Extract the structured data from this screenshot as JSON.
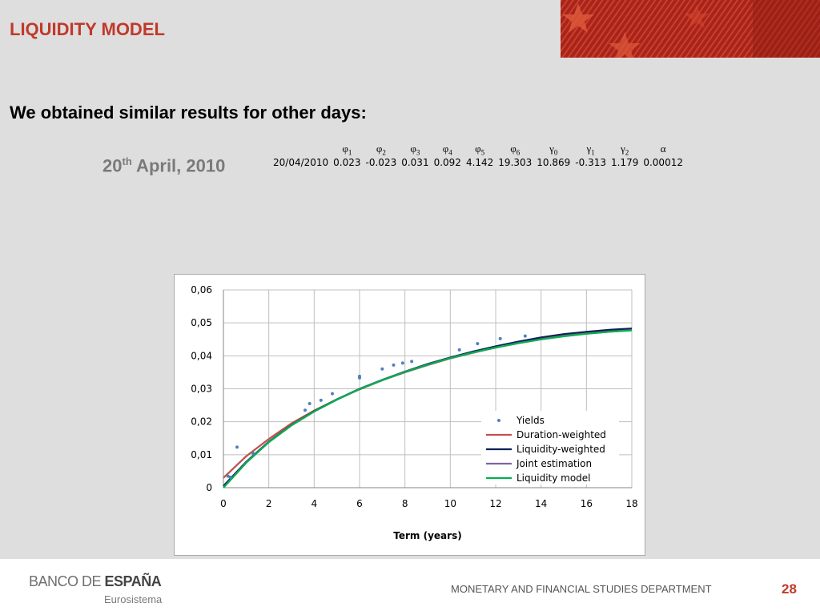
{
  "slide": {
    "title": "LIQUIDITY MODEL",
    "heading": "We obtained similar results for other days:",
    "date_number": "20",
    "date_suffix": "th",
    "date_rest": " April, 2010"
  },
  "params_table": {
    "symbols": [
      {
        "base": "φ",
        "sub": "1"
      },
      {
        "base": "φ",
        "sub": "2"
      },
      {
        "base": "φ",
        "sub": "3"
      },
      {
        "base": "φ",
        "sub": "4"
      },
      {
        "base": "φ",
        "sub": "5"
      },
      {
        "base": "φ",
        "sub": "6"
      },
      {
        "base": "γ",
        "sub": "0"
      },
      {
        "base": "γ",
        "sub": "1"
      },
      {
        "base": "γ",
        "sub": "2"
      },
      {
        "base": "α",
        "sub": ""
      }
    ],
    "row": [
      "20/04/2010",
      "0.023",
      "-0.023",
      "0.031",
      "0.092",
      "4.142",
      "19.303",
      "10.869",
      "-0.313",
      "1.179",
      "0.00012"
    ]
  },
  "chart_data": {
    "type": "scatter",
    "xlabel": "Term (years)",
    "ylabel": "",
    "xlim": [
      0,
      18
    ],
    "ylim": [
      0,
      0.06
    ],
    "x_ticks": [
      "0",
      "2",
      "4",
      "6",
      "8",
      "10",
      "12",
      "14",
      "16",
      "18"
    ],
    "y_ticks": [
      "0",
      "0,01",
      "0,02",
      "0,03",
      "0,04",
      "0,05",
      "0,06"
    ],
    "grid": true,
    "legend_position": "bottom-right",
    "series": [
      {
        "name": "Yields",
        "kind": "points",
        "color": "#4f81bd",
        "x": [
          0.2,
          0.3,
          0.6,
          1.3,
          3.6,
          3.8,
          4.3,
          4.8,
          6.0,
          6.0,
          7.0,
          7.5,
          7.9,
          8.3,
          10.4,
          11.2,
          12.2,
          13.3
        ],
        "y": [
          0.0035,
          0.0032,
          0.0123,
          0.0105,
          0.0235,
          0.0255,
          0.0265,
          0.0285,
          0.0333,
          0.0338,
          0.036,
          0.0372,
          0.0378,
          0.0383,
          0.0418,
          0.0437,
          0.0452,
          0.046
        ]
      },
      {
        "name": "Duration-weighted",
        "kind": "line",
        "color": "#c0504d",
        "x": [
          0,
          1,
          2,
          3,
          4,
          5,
          6,
          7,
          8,
          9,
          10,
          11,
          12,
          13,
          14,
          15,
          16,
          17,
          18
        ],
        "y": [
          0.003,
          0.0095,
          0.0148,
          0.0195,
          0.0234,
          0.0268,
          0.0298,
          0.0326,
          0.035,
          0.0372,
          0.0392,
          0.0409,
          0.0425,
          0.0439,
          0.0451,
          0.0461,
          0.0469,
          0.0475,
          0.048
        ]
      },
      {
        "name": "Liquidity-weighted",
        "kind": "line",
        "color": "#0e2257",
        "x": [
          0,
          1,
          2,
          3,
          4,
          5,
          6,
          7,
          8,
          9,
          10,
          11,
          12,
          13,
          14,
          15,
          16,
          17,
          18
        ],
        "y": [
          0.0005,
          0.0078,
          0.014,
          0.019,
          0.0232,
          0.0268,
          0.03,
          0.0327,
          0.0352,
          0.0375,
          0.0395,
          0.0413,
          0.0429,
          0.0443,
          0.0456,
          0.0466,
          0.0473,
          0.0479,
          0.0483
        ]
      },
      {
        "name": "Joint estimation",
        "kind": "line",
        "color": "#8064a2",
        "x": [
          0,
          1,
          2,
          3,
          4,
          5,
          6,
          7,
          8,
          9,
          10,
          11,
          12,
          13,
          14,
          15,
          16,
          17,
          18
        ],
        "y": [
          0.0,
          0.0076,
          0.0139,
          0.0189,
          0.0231,
          0.0267,
          0.0299,
          0.0326,
          0.0351,
          0.0373,
          0.0393,
          0.041,
          0.0425,
          0.0439,
          0.045,
          0.046,
          0.0467,
          0.0473,
          0.0478
        ]
      },
      {
        "name": "Liquidity model",
        "kind": "line",
        "color": "#00b050",
        "x": [
          0,
          1,
          2,
          3,
          4,
          5,
          6,
          7,
          8,
          9,
          10,
          11,
          12,
          13,
          14,
          15,
          16,
          17,
          18
        ],
        "y": [
          0.0,
          0.0075,
          0.0138,
          0.0189,
          0.0231,
          0.0267,
          0.0299,
          0.0326,
          0.0351,
          0.0373,
          0.0393,
          0.041,
          0.0425,
          0.0438,
          0.045,
          0.0459,
          0.0467,
          0.0473,
          0.0477
        ]
      }
    ]
  },
  "footer": {
    "logo_main_light": "BANCO DE ",
    "logo_main_bold": "ESPAÑA",
    "logo_sub": "Eurosistema",
    "department": "MONETARY AND FINANCIAL STUDIES DEPARTMENT",
    "page_number": "28"
  },
  "colors": {
    "accent": "#c0392b",
    "banner": "#a92319",
    "background": "#dedede"
  }
}
